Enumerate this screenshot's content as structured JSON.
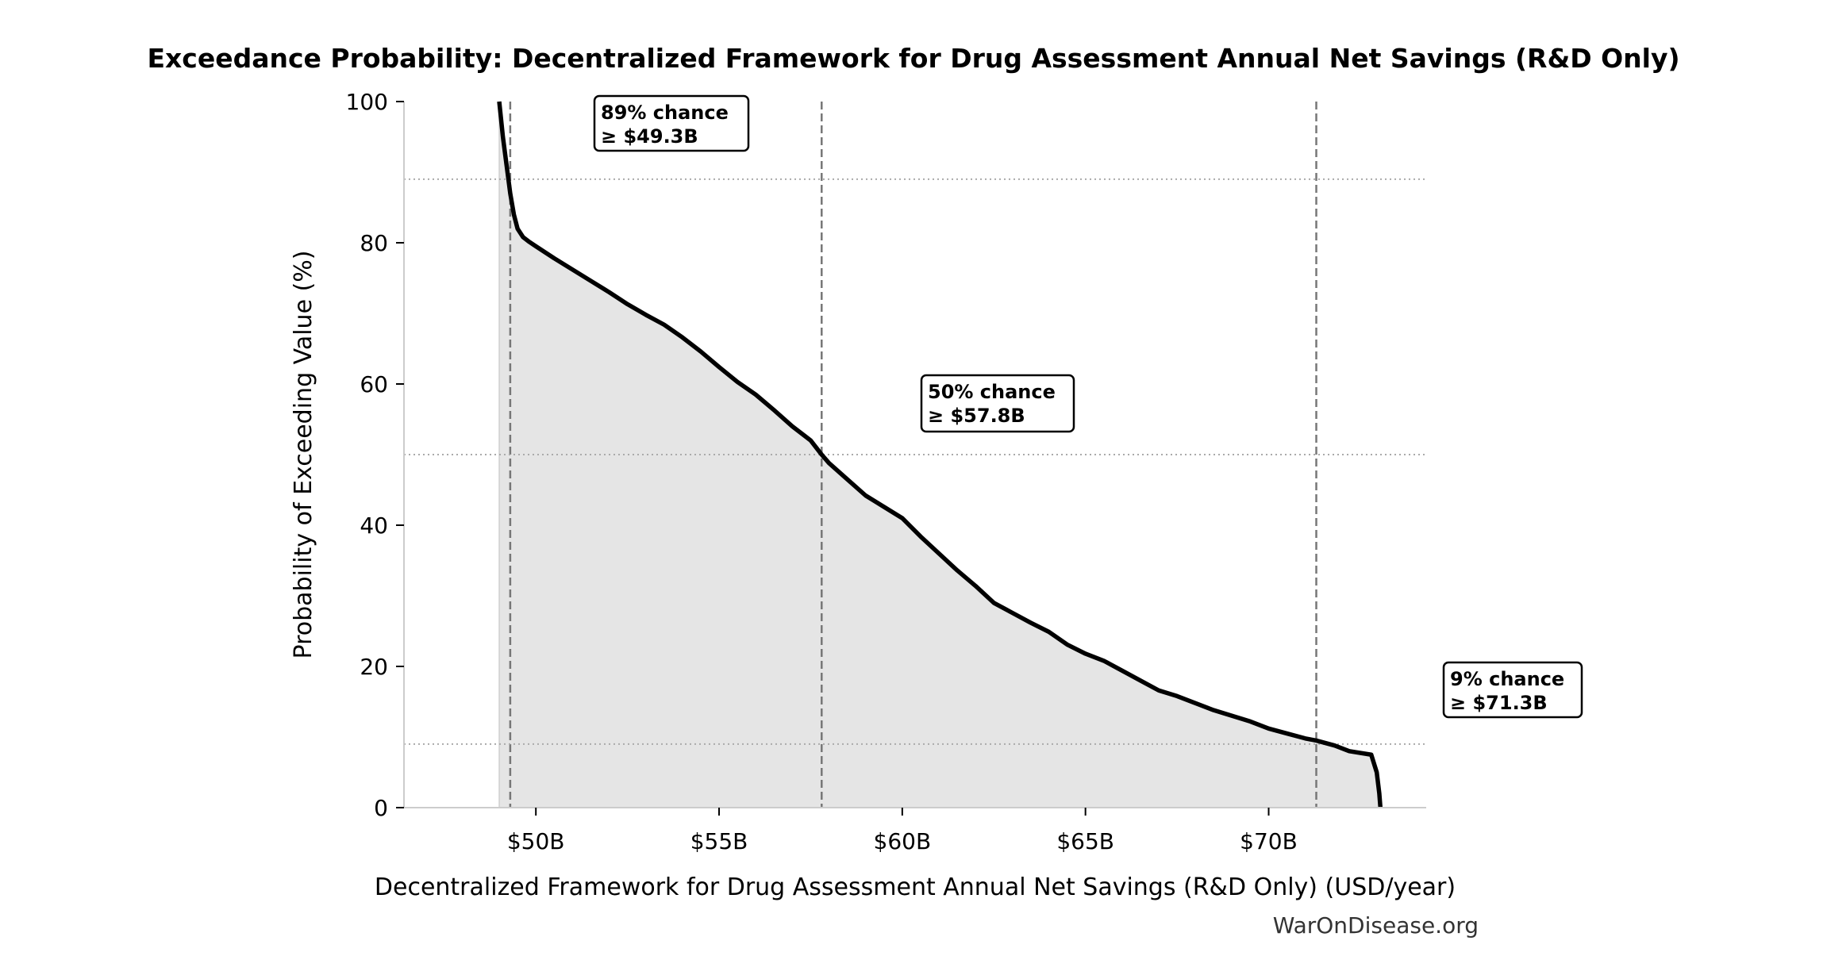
{
  "chart_data": {
    "type": "area",
    "title": "Exceedance Probability: Decentralized Framework for Drug Assessment Annual Net Savings (R&D Only)",
    "xlabel": "Decentralized Framework for Drug Assessment Annual Net Savings (R&D Only) (USD/year)",
    "ylabel": "Probability of Exceeding Value (%)",
    "xlim": [
      46.4,
      74.3
    ],
    "ylim": [
      0,
      100
    ],
    "x_unit": "USD billions/year",
    "x_ticks": [
      50,
      55,
      60,
      65,
      70
    ],
    "x_tick_labels": [
      "$50B",
      "$55B",
      "$60B",
      "$65B",
      "$70B"
    ],
    "y_ticks": [
      0,
      20,
      40,
      60,
      80,
      100
    ],
    "y_tick_labels": [
      "0",
      "20",
      "40",
      "60",
      "80",
      "100"
    ],
    "grid": false,
    "legend": "none",
    "colors": {
      "line": "#000000",
      "fill": "#e5e5e5",
      "reference": "#777777",
      "spine": "#cccccc"
    },
    "series": [
      {
        "x": [
          49.0,
          49.1,
          49.2,
          49.3,
          49.4,
          49.5,
          49.65,
          49.8,
          50.0,
          50.5,
          51.0,
          51.5,
          52.0,
          52.5,
          53.0,
          53.5,
          54.0,
          54.5,
          55.0,
          55.5,
          56.0,
          56.5,
          57.0,
          57.5,
          57.8,
          58.0,
          58.5,
          59.0,
          59.5,
          60.0,
          60.5,
          61.0,
          61.5,
          62.0,
          62.5,
          63.0,
          63.5,
          64.0,
          64.5,
          65.0,
          65.5,
          66.0,
          66.5,
          67.0,
          67.5,
          68.0,
          68.5,
          69.0,
          69.5,
          70.0,
          70.5,
          71.0,
          71.3,
          71.8,
          72.2,
          72.8,
          72.95,
          73.02,
          73.05
        ],
        "y": [
          100,
          95,
          91,
          87,
          84,
          82,
          80.8,
          80.2,
          79.5,
          77.8,
          76.2,
          74.6,
          73.0,
          71.3,
          69.8,
          68.4,
          66.6,
          64.6,
          62.4,
          60.3,
          58.5,
          56.3,
          54.0,
          52.0,
          50.0,
          48.8,
          46.5,
          44.2,
          42.6,
          41.0,
          38.4,
          36.0,
          33.6,
          31.4,
          29.0,
          27.6,
          26.2,
          24.9,
          23.1,
          21.8,
          20.8,
          19.4,
          18.0,
          16.6,
          15.8,
          14.8,
          13.8,
          13.0,
          12.2,
          11.2,
          10.5,
          9.8,
          9.5,
          8.8,
          8.0,
          7.5,
          5.0,
          2.0,
          0
        ]
      }
    ],
    "reference_lines": [
      {
        "probability": 89,
        "value": 49.3
      },
      {
        "probability": 50,
        "value": 57.8
      },
      {
        "probability": 9,
        "value": 71.3
      }
    ],
    "annotations": [
      {
        "line1": "89% chance",
        "line2": "≥ $49.3B"
      },
      {
        "line1": "50% chance",
        "line2": "≥ $57.8B"
      },
      {
        "line1": "9% chance",
        "line2": "≥ $71.3B"
      }
    ]
  },
  "watermark": "WarOnDisease.org"
}
